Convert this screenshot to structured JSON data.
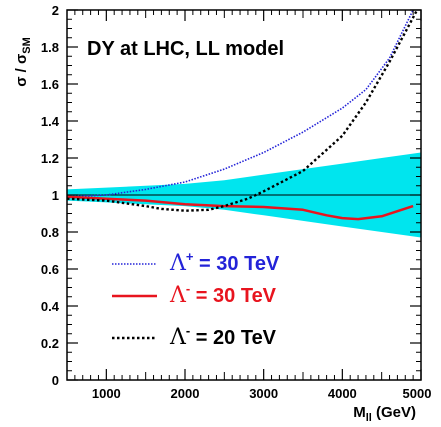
{
  "chart_data": {
    "type": "line",
    "title": "DY at LHC, LL model",
    "ylabel_main": "σ / σ",
    "ylabel_sub": "SM",
    "xlabel_main": "M",
    "xlabel_sub": "ll",
    "xlabel_unit": " (GeV)",
    "xlim": [
      500,
      5000
    ],
    "ylim": [
      0,
      2
    ],
    "xticks": [
      1000,
      2000,
      3000,
      4000,
      5000
    ],
    "xtick_labels": [
      "1000",
      "2000",
      "3000",
      "4000",
      "5000"
    ],
    "yticks": [
      0,
      0.2,
      0.4,
      0.6,
      0.8,
      1,
      1.2,
      1.4,
      1.6,
      1.8,
      2
    ],
    "ytick_labels": [
      "0",
      "0.2",
      "0.4",
      "0.6",
      "0.8",
      "1",
      "1.2",
      "1.4",
      "1.6",
      "1.8",
      "2"
    ],
    "reference_line": 1.0,
    "band": {
      "color": "#00e5ee",
      "x": [
        500,
        1000,
        1500,
        2000,
        2500,
        3000,
        3500,
        4000,
        4500,
        5000
      ],
      "upper": [
        1.03,
        1.04,
        1.05,
        1.06,
        1.08,
        1.11,
        1.14,
        1.17,
        1.2,
        1.23
      ],
      "lower": [
        0.97,
        0.96,
        0.95,
        0.94,
        0.92,
        0.89,
        0.86,
        0.83,
        0.8,
        0.77
      ]
    },
    "series": [
      {
        "name": "Λ⁺ = 30 TeV",
        "legend_symbol": "Λ",
        "legend_sup": "+",
        "legend_rest": " = 30 TeV",
        "color": "#2323d8",
        "style": "dotted",
        "x": [
          500,
          1000,
          1500,
          2000,
          2500,
          3000,
          3500,
          4000,
          4300,
          4600,
          4900
        ],
        "y": [
          0.99,
          1.0,
          1.03,
          1.07,
          1.14,
          1.23,
          1.34,
          1.47,
          1.57,
          1.74,
          2.0
        ]
      },
      {
        "name": "Λ⁻ = 30 TeV",
        "legend_symbol": "Λ",
        "legend_sup": "-",
        "legend_rest": " = 30 TeV",
        "color": "#e8141e",
        "style": "solid",
        "x": [
          500,
          1000,
          1500,
          2000,
          2500,
          3000,
          3500,
          3800,
          4000,
          4200,
          4500,
          4900
        ],
        "y": [
          0.99,
          0.98,
          0.97,
          0.95,
          0.94,
          0.935,
          0.92,
          0.89,
          0.875,
          0.87,
          0.885,
          0.94
        ]
      },
      {
        "name": "Λ⁻ = 20 TeV",
        "legend_symbol": "Λ",
        "legend_sup": "-",
        "legend_rest": " = 20 TeV",
        "color": "#000000",
        "style": "dotted",
        "x": [
          500,
          1000,
          1500,
          1700,
          2000,
          2300,
          2500,
          2800,
          3000,
          3500,
          4000,
          4300,
          4600,
          4950
        ],
        "y": [
          0.98,
          0.97,
          0.94,
          0.925,
          0.915,
          0.92,
          0.94,
          0.98,
          1.02,
          1.13,
          1.32,
          1.5,
          1.72,
          2.0
        ]
      }
    ]
  }
}
